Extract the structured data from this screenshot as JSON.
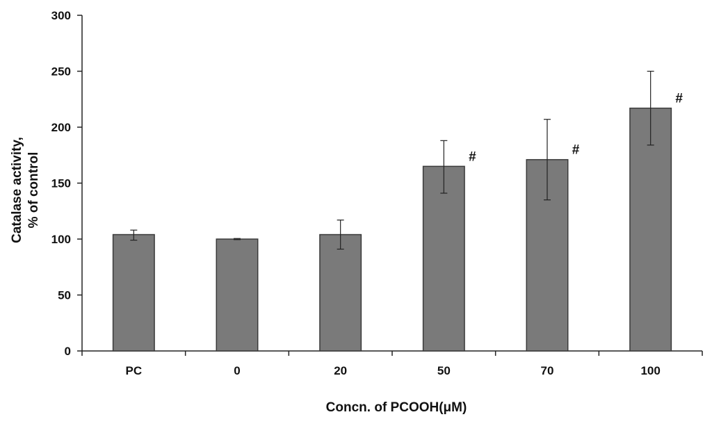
{
  "chart_data": {
    "type": "bar",
    "categories": [
      "PC",
      "0",
      "20",
      "50",
      "70",
      "100"
    ],
    "values": [
      104,
      100,
      104,
      165,
      171,
      217
    ],
    "error_high": [
      108,
      100.5,
      117,
      188,
      207,
      250
    ],
    "error_low": [
      99,
      99.5,
      91,
      141,
      135,
      184
    ],
    "annotations": [
      "",
      "",
      "",
      "#",
      "#",
      "#"
    ],
    "xlabel": "Concn. of PCOOH(μM)",
    "ylabel_lines": [
      "Catalase activity,",
      "% of control"
    ],
    "ylim": [
      0,
      300
    ],
    "yticks": [
      "0",
      "50",
      "100",
      "150",
      "200",
      "250",
      "300"
    ],
    "grid": false,
    "colors": {
      "bar_fill": "#7a7a7a",
      "bar_stroke": "#3a3a3a",
      "axis": "#222222"
    }
  }
}
